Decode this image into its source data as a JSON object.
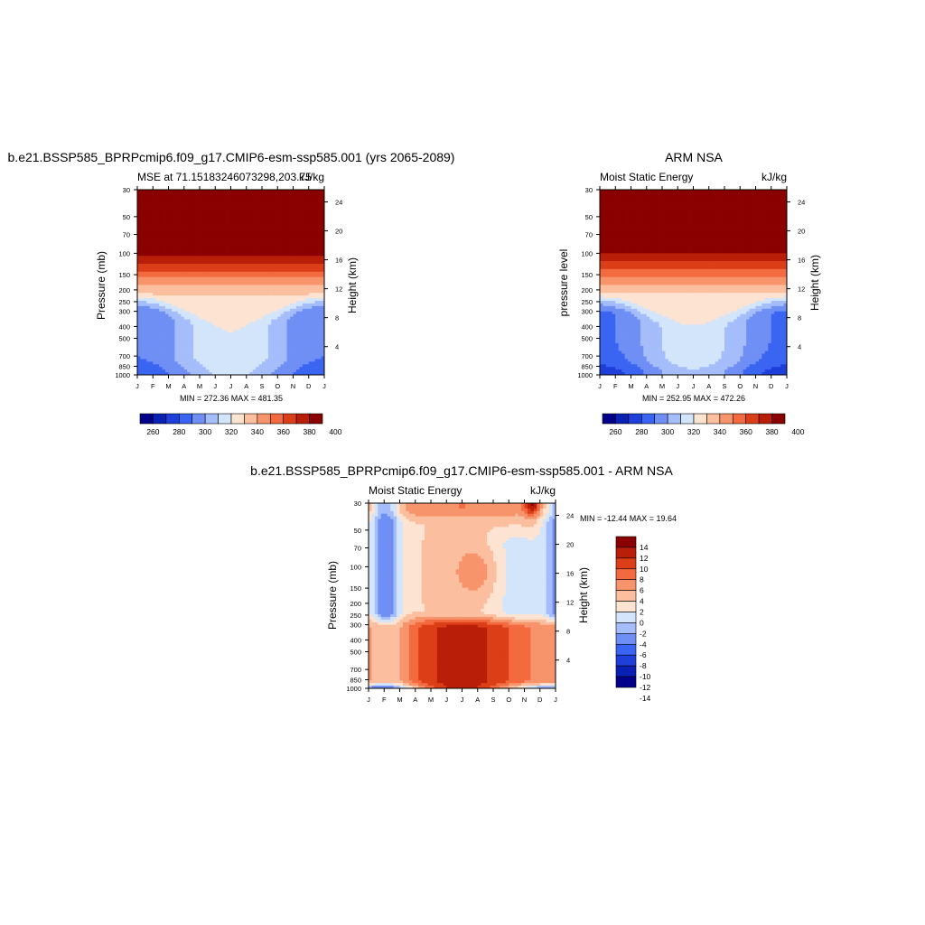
{
  "colors": {
    "mse_levels": [
      "#00008b",
      "#0a1fb4",
      "#1e3fd9",
      "#3a64f2",
      "#6f8ff5",
      "#a5bdfa",
      "#d2e5fb",
      "#fde3d2",
      "#fbbf9f",
      "#f8946c",
      "#f26a3e",
      "#dc3e18",
      "#b81e08",
      "#8b0000"
    ],
    "diff_levels": [
      "#00008b",
      "#0a1fb4",
      "#1e3fd9",
      "#3a64f2",
      "#6f8ff5",
      "#a5bdfa",
      "#d2e5fb",
      "#fde3d2",
      "#fbbf9f",
      "#f8946c",
      "#f26a3e",
      "#dc3e18",
      "#b81e08",
      "#8b0000"
    ]
  },
  "chart_data": [
    {
      "type": "heatmap",
      "title": "b.e21.BSSP585_BPRPcmip6.f09_g17.CMIP6-esm-ssp585.001 (yrs 2065-2089)",
      "left_label": "MSE at 71.15183246073298,203.75",
      "right_label": "kJ/kg",
      "xlabel": "",
      "ylabel": "Pressure (mb)",
      "ylabel_right": "Height (km)",
      "x_ticks": [
        "J",
        "F",
        "M",
        "A",
        "M",
        "J",
        "J",
        "A",
        "S",
        "O",
        "N",
        "D",
        "J"
      ],
      "y_ticks": [
        "30",
        "50",
        "70",
        "100",
        "150",
        "200",
        "250",
        "300",
        "400",
        "500",
        "700",
        "850",
        "1000"
      ],
      "y_tick_values": [
        30,
        50,
        70,
        100,
        150,
        200,
        250,
        300,
        400,
        500,
        700,
        850,
        1000
      ],
      "height_ticks": [
        "24",
        "20",
        "16",
        "12",
        "8",
        "4"
      ],
      "height_tick_values": [
        24,
        20,
        16,
        12,
        8,
        4
      ],
      "ylim": [
        30,
        1000
      ],
      "y_scale": "log",
      "stats": "MIN = 272.36 MAX = 481.35",
      "colorbar": {
        "orientation": "horizontal",
        "levels": [
          255,
          260,
          270,
          280,
          290,
          300,
          310,
          320,
          330,
          340,
          350,
          360,
          370,
          380,
          390,
          400
        ],
        "labels": [
          "260",
          "280",
          "300",
          "320",
          "340",
          "360",
          "380",
          "400"
        ],
        "label_values": [
          260,
          280,
          300,
          320,
          340,
          360,
          380,
          400
        ]
      },
      "field": "mse_model"
    },
    {
      "type": "heatmap",
      "title": "ARM NSA",
      "left_label": "Moist Static Energy",
      "right_label": "kJ/kg",
      "xlabel": "",
      "ylabel": "pressure level",
      "ylabel_right": "Height (km)",
      "x_ticks": [
        "J",
        "F",
        "M",
        "A",
        "M",
        "J",
        "J",
        "A",
        "S",
        "O",
        "N",
        "D",
        "J"
      ],
      "y_ticks": [
        "30",
        "50",
        "70",
        "100",
        "150",
        "200",
        "250",
        "300",
        "400",
        "500",
        "700",
        "850",
        "1000"
      ],
      "y_tick_values": [
        30,
        50,
        70,
        100,
        150,
        200,
        250,
        300,
        400,
        500,
        700,
        850,
        1000
      ],
      "height_ticks": [
        "24",
        "20",
        "16",
        "12",
        "8",
        "4"
      ],
      "height_tick_values": [
        24,
        20,
        16,
        12,
        8,
        4
      ],
      "ylim": [
        30,
        1000
      ],
      "y_scale": "log",
      "stats": "MIN = 252.95 MAX = 472.26",
      "colorbar": {
        "orientation": "horizontal",
        "labels": [
          "260",
          "280",
          "300",
          "320",
          "340",
          "360",
          "380",
          "400"
        ],
        "label_values": [
          260,
          280,
          300,
          320,
          340,
          360,
          380,
          400
        ]
      },
      "field": "mse_obs"
    },
    {
      "type": "heatmap",
      "title": "b.e21.BSSP585_BPRPcmip6.f09_g17.CMIP6-esm-ssp585.001 - ARM NSA",
      "left_label": "Moist Static Energy",
      "right_label": "kJ/kg",
      "xlabel": "",
      "ylabel": "Pressure (mb)",
      "ylabel_right": "Height (km)",
      "x_ticks": [
        "J",
        "F",
        "M",
        "A",
        "M",
        "J",
        "J",
        "A",
        "S",
        "O",
        "N",
        "D",
        "J"
      ],
      "y_ticks": [
        "30",
        "50",
        "70",
        "100",
        "150",
        "200",
        "250",
        "300",
        "400",
        "500",
        "700",
        "850",
        "1000"
      ],
      "y_tick_values": [
        30,
        50,
        70,
        100,
        150,
        200,
        250,
        300,
        400,
        500,
        700,
        850,
        1000
      ],
      "height_ticks": [
        "24",
        "20",
        "16",
        "12",
        "8",
        "4"
      ],
      "height_tick_values": [
        24,
        20,
        16,
        12,
        8,
        4
      ],
      "ylim": [
        30,
        1000
      ],
      "y_scale": "log",
      "stats": "MIN = -12.44 MAX =  19.64",
      "colorbar": {
        "orientation": "vertical",
        "labels": [
          "14",
          "12",
          "10",
          "8",
          "6",
          "4",
          "2",
          "0",
          "-2",
          "-4",
          "-6",
          "-8",
          "-10",
          "-12",
          "-14"
        ],
        "label_values": [
          14,
          12,
          10,
          8,
          6,
          4,
          2,
          0,
          -2,
          -4,
          -6,
          -8,
          -10,
          -12,
          -14
        ]
      },
      "field": "mse_diff"
    }
  ]
}
